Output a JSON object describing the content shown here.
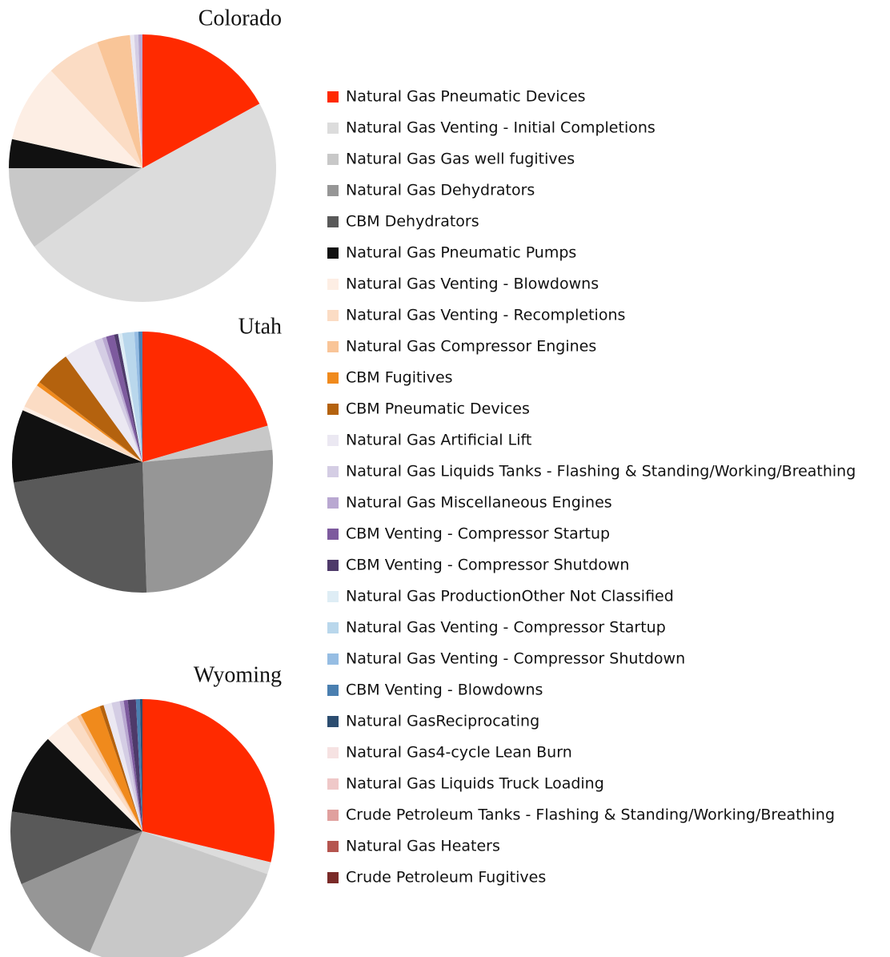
{
  "chart_data": {
    "type": "pie",
    "categories": [
      "Natural Gas Pneumatic Devices",
      "Natural Gas Venting - Initial Completions",
      "Natural Gas Gas well fugitives",
      "Natural Gas Dehydrators",
      "CBM Dehydrators",
      "Natural Gas Pneumatic Pumps",
      "Natural Gas Venting - Blowdowns",
      "Natural Gas Venting - Recompletions",
      "Natural Gas Compressor Engines",
      "CBM Fugitives",
      "CBM Pneumatic Devices",
      "Natural Gas Artificial Lift",
      "Natural Gas Liquids Tanks - Flashing & Standing/Working/Breathing",
      "Natural Gas Miscellaneous Engines",
      "CBM Venting - Compressor Startup",
      "CBM Venting - Compressor Shutdown",
      "Natural Gas ProductionOther Not Classified",
      "Natural Gas Venting - Compressor Startup",
      "Natural Gas Venting - Compressor Shutdown",
      "CBM Venting - Blowdowns",
      "Natural GasReciprocating",
      "Natural Gas4-cycle Lean Burn",
      "Natural Gas Liquids Truck Loading",
      "Crude Petroleum Tanks - Flashing & Standing/Working/Breathing",
      "Natural Gas Heaters",
      "Crude Petroleum Fugitives"
    ],
    "colors": [
      "#ff2a00",
      "#dcdcdc",
      "#c8c8c8",
      "#969696",
      "#595959",
      "#111111",
      "#fdeee4",
      "#fbdcc4",
      "#f9c598",
      "#f08a1c",
      "#b4620e",
      "#ebe8f2",
      "#d4cde4",
      "#b9a8d1",
      "#7d5a9e",
      "#4e3a6a",
      "#deedf5",
      "#b9d7ec",
      "#96bde3",
      "#4a7fb0",
      "#2c4d70",
      "#f6e2e2",
      "#efc8c8",
      "#e0a09e",
      "#b5554f",
      "#7a2a28"
    ],
    "series": [
      {
        "name": "Colorado",
        "values": [
          17,
          48,
          10,
          0,
          0,
          3.5,
          9.5,
          6.5,
          4,
          0,
          0,
          0.5,
          0.5,
          0.5,
          0,
          0,
          0,
          0,
          0,
          0,
          0,
          0,
          0,
          0,
          0,
          0
        ]
      },
      {
        "name": "Utah",
        "values": [
          20.5,
          0,
          3,
          26,
          23,
          9,
          0.5,
          3,
          0,
          0.5,
          4.5,
          4,
          1,
          0.5,
          1,
          0.5,
          0.5,
          1.5,
          0.5,
          0.5,
          0,
          0,
          0,
          0,
          0,
          0
        ]
      },
      {
        "name": "Wyoming",
        "values": [
          29,
          1.5,
          26.5,
          12,
          9,
          10,
          3,
          1.5,
          0.5,
          2.5,
          0.5,
          1,
          1,
          0.5,
          0.5,
          1,
          0,
          0,
          0,
          0.5,
          0.3,
          0,
          0,
          0,
          0,
          0
        ]
      }
    ]
  }
}
